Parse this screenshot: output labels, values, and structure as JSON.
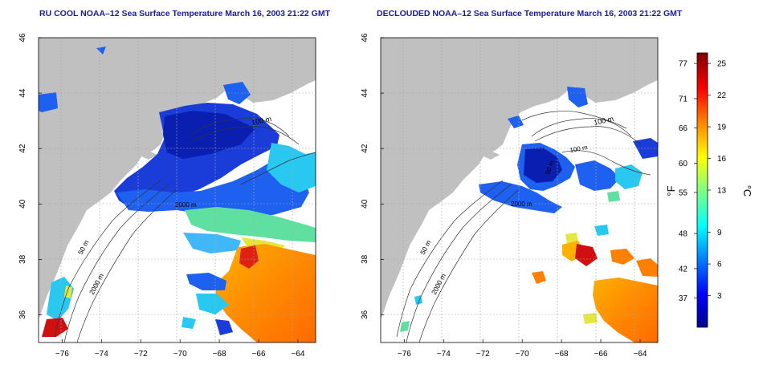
{
  "panels": [
    {
      "title": "RU COOL NOAA–12 Sea Surface Temperature March 16, 2003 21:22 GMT",
      "iso_labels": [
        "100 m",
        "50 m",
        "2000 m",
        "2000 m"
      ]
    },
    {
      "title": "DECLOUDED NOAA–12 Sea Surface Temperature March 16, 2003 21:22 GMT",
      "iso_labels": [
        "100 m",
        "100 m",
        "50 m",
        "50 m",
        "2000 m",
        "2000 m"
      ]
    }
  ],
  "axes": {
    "lon_ticks": [
      "−76",
      "−74",
      "−72",
      "−70",
      "−68",
      "−66",
      "−64"
    ],
    "lat_ticks": [
      "36",
      "38",
      "40",
      "42",
      "44",
      "46"
    ],
    "lon_range": [
      -77.2,
      -63.1
    ],
    "lat_range": [
      35,
      46
    ]
  },
  "colorbar": {
    "f_ticks": [
      "77",
      "71",
      "66",
      "60",
      "55",
      "48",
      "42",
      "37"
    ],
    "c_ticks": [
      "25",
      "22",
      "19",
      "16",
      "13",
      "9",
      "6",
      "3"
    ],
    "f_unit": "°F",
    "c_unit": "°C",
    "range_c": [
      0,
      26
    ],
    "colors": [
      "#00008f",
      "#0000ff",
      "#0080ff",
      "#00ffff",
      "#80ff80",
      "#ffff00",
      "#ff8000",
      "#ff0000",
      "#800000"
    ]
  },
  "colors": {
    "land": "#c0c0c0",
    "title": "#1a1a9c",
    "grid": "#a8a8a8"
  }
}
